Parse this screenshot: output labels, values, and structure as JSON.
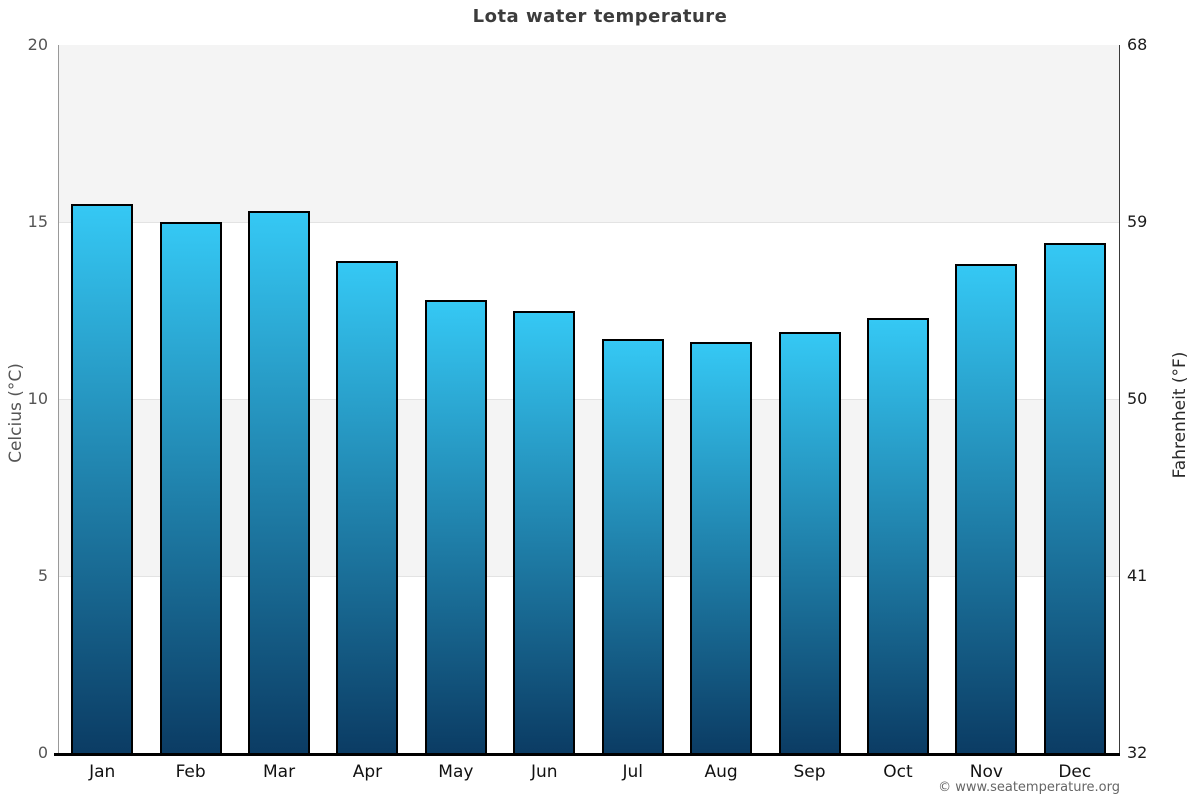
{
  "title": "Lota water temperature",
  "credit": "© www.seatemperature.org",
  "axis_left": {
    "label": "Celcius (°C)",
    "ticks": [
      20,
      15,
      10,
      5,
      0
    ],
    "range": [
      0,
      20
    ]
  },
  "axis_right": {
    "label": "Fahrenheit (°F)",
    "ticks": [
      68,
      59,
      50,
      41,
      32
    ],
    "range": [
      32,
      68
    ]
  },
  "colors": {
    "bar_gradient_top": "#35c8f4",
    "bar_gradient_bottom": "#0b3c64",
    "bar_border": "#000000",
    "band_gray": "#f4f4f4",
    "band_white": "#ffffff",
    "gridline": "#e3e3e3",
    "title_text": "#3c3c3c",
    "left_tick_text": "#555555",
    "right_tick_text": "#1c1c1c",
    "month_text": "#111111",
    "credit_text": "#666666"
  },
  "chart_data": {
    "type": "bar",
    "title": "Lota water temperature",
    "categories": [
      "Jan",
      "Feb",
      "Mar",
      "Apr",
      "May",
      "Jun",
      "Jul",
      "Aug",
      "Sep",
      "Oct",
      "Nov",
      "Dec"
    ],
    "values": [
      15.5,
      15.0,
      15.3,
      13.9,
      12.8,
      12.5,
      11.7,
      11.6,
      11.9,
      12.3,
      13.8,
      14.4
    ],
    "xlabel": "",
    "ylabel_left": "Celcius (°C)",
    "ylabel_right": "Fahrenheit (°F)",
    "ylim_left": [
      0,
      20
    ],
    "ylim_right": [
      32,
      68
    ],
    "grid": "horizontal gridlines every 5 °C with alternating gray/white bands",
    "legend": "none",
    "bar_style": "vertical bars, cyan-to-navy vertical gradient, black outline"
  }
}
